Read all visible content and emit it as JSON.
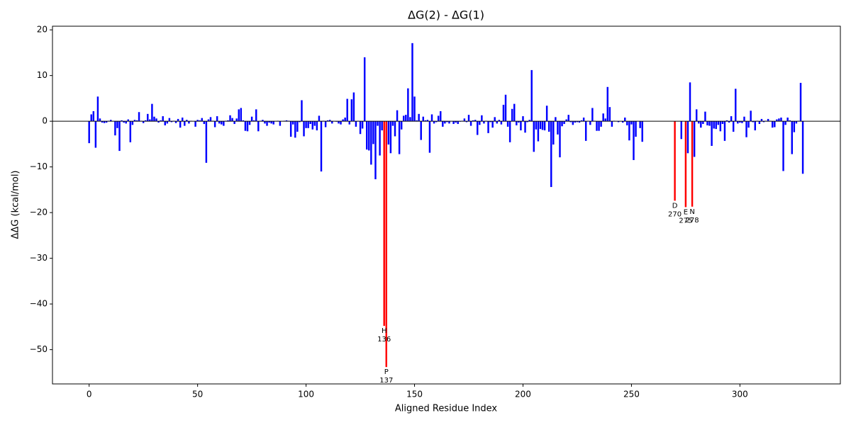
{
  "chart_data": {
    "type": "bar",
    "title": "ΔG(2) - ΔG(1)",
    "xlabel": "Aligned Residue Index",
    "ylabel": "ΔΔG (kcal/mol)",
    "color": "#0000ff",
    "highlight_color": "#ff0000",
    "hline": 0,
    "xlim": [
      -16.9,
      346.3
    ],
    "ylim": [
      -57.5,
      20.8
    ],
    "xticks": [
      0,
      50,
      100,
      150,
      200,
      250,
      300
    ],
    "yticks": [
      {
        "value": -50,
        "label": "−50"
      },
      {
        "value": -40,
        "label": "−40"
      },
      {
        "value": -30,
        "label": "−30"
      },
      {
        "value": -20,
        "label": "−20"
      },
      {
        "value": -10,
        "label": "−10"
      },
      0,
      10,
      20
    ],
    "annotations": [
      {
        "text": "H",
        "x": 136
      },
      {
        "text": "P",
        "x": 137
      },
      {
        "text": "D",
        "x": 270
      },
      {
        "text": "E",
        "x": 275
      },
      {
        "text": "N",
        "x": 278
      }
    ],
    "x": [
      0,
      1,
      2,
      3,
      4,
      5,
      6,
      7,
      8,
      9,
      10,
      11,
      12,
      13,
      14,
      15,
      16,
      17,
      18,
      19,
      20,
      21,
      22,
      23,
      24,
      25,
      26,
      27,
      28,
      29,
      30,
      31,
      32,
      33,
      34,
      35,
      36,
      37,
      38,
      39,
      40,
      41,
      42,
      43,
      44,
      45,
      46,
      47,
      48,
      49,
      50,
      51,
      52,
      53,
      54,
      55,
      56,
      57,
      58,
      59,
      60,
      61,
      62,
      63,
      64,
      65,
      66,
      67,
      68,
      69,
      70,
      71,
      72,
      73,
      74,
      75,
      76,
      77,
      78,
      79,
      80,
      81,
      82,
      83,
      84,
      85,
      86,
      87,
      88,
      89,
      90,
      91,
      92,
      93,
      94,
      95,
      96,
      97,
      98,
      99,
      100,
      101,
      102,
      103,
      104,
      105,
      106,
      107,
      108,
      109,
      110,
      111,
      112,
      113,
      114,
      115,
      116,
      117,
      118,
      119,
      120,
      121,
      122,
      123,
      124,
      125,
      126,
      127,
      128,
      129,
      130,
      131,
      132,
      133,
      134,
      135,
      136,
      137,
      138,
      139,
      140,
      141,
      142,
      143,
      144,
      145,
      146,
      147,
      148,
      149,
      150,
      151,
      152,
      153,
      154,
      155,
      156,
      157,
      158,
      159,
      160,
      161,
      162,
      163,
      164,
      165,
      166,
      167,
      168,
      169,
      170,
      171,
      172,
      173,
      174,
      175,
      176,
      177,
      178,
      179,
      180,
      181,
      182,
      183,
      184,
      185,
      186,
      187,
      188,
      189,
      190,
      191,
      192,
      193,
      194,
      195,
      196,
      197,
      198,
      199,
      200,
      201,
      202,
      203,
      204,
      205,
      206,
      207,
      208,
      209,
      210,
      211,
      212,
      213,
      214,
      215,
      216,
      217,
      218,
      219,
      220,
      221,
      222,
      223,
      224,
      225,
      226,
      227,
      228,
      229,
      230,
      231,
      232,
      233,
      234,
      235,
      236,
      237,
      238,
      239,
      240,
      241,
      242,
      243,
      244,
      245,
      246,
      247,
      248,
      249,
      250,
      251,
      252,
      253,
      254,
      255,
      256,
      257,
      258,
      259,
      260,
      261,
      262,
      263,
      264,
      265,
      266,
      267,
      268,
      269,
      270,
      271,
      272,
      273,
      274,
      275,
      276,
      277,
      278,
      279,
      280,
      281,
      282,
      283,
      284,
      285,
      286,
      287,
      288,
      289,
      290,
      291,
      292,
      293,
      294,
      295,
      296,
      297,
      298,
      299,
      300,
      301,
      302,
      303,
      304,
      305,
      306,
      307,
      308,
      309,
      310,
      311,
      312,
      313,
      314,
      315,
      316,
      317,
      318,
      319,
      320,
      321,
      322,
      323,
      324,
      325,
      326,
      327,
      328,
      329
    ],
    "values": [
      -4.8,
      1.5,
      2.2,
      -5.8,
      5.4,
      0.6,
      -0.3,
      -0.4,
      -0.3,
      0.1,
      0.3,
      0,
      -3.1,
      -1.5,
      -6.5,
      0.2,
      -0.3,
      -0.5,
      0.4,
      -4.6,
      -0.8,
      0.3,
      0.2,
      2.0,
      0.1,
      -0.4,
      0.2,
      1.6,
      0.4,
      3.8,
      1.0,
      0.6,
      -0.3,
      0.2,
      1.1,
      -0.9,
      -0.5,
      0.7,
      -0.2,
      0.1,
      -0.4,
      0.5,
      -1.4,
      0.8,
      -1.0,
      0.3,
      -0.5,
      0.1,
      0,
      -1.2,
      0.3,
      0.2,
      0.7,
      -0.6,
      -9.1,
      0.4,
      0.9,
      0.1,
      -1.3,
      1.1,
      -0.5,
      -0.7,
      -1.0,
      0.1,
      0.2,
      1.3,
      0.7,
      -0.6,
      0.6,
      2.6,
      2.9,
      0.2,
      -2.1,
      -2.2,
      -0.8,
      1.0,
      0.2,
      2.6,
      -2.2,
      0.1,
      0.3,
      -0.5,
      -1.0,
      -0.3,
      -0.5,
      -0.7,
      0,
      0.1,
      -1.0,
      0,
      0.1,
      0.2,
      0.1,
      -3.4,
      -0.7,
      -3.6,
      -2.3,
      -0.2,
      4.6,
      -3.3,
      -1.5,
      -1.5,
      -0.6,
      -1.8,
      -1.0,
      -2.0,
      1.2,
      -11.0,
      0.1,
      -1.3,
      0.2,
      0.3,
      -0.5,
      0,
      -0.1,
      -0.5,
      -0.7,
      0.4,
      0.8,
      4.9,
      -0.7,
      4.8,
      6.3,
      -1.2,
      0.1,
      -2.8,
      -1.6,
      14.0,
      -6.2,
      -6.4,
      -9.5,
      -5.0,
      -12.7,
      -1.0,
      -7.5,
      -2.0,
      -44.8,
      -53.8,
      -5.1,
      -7.0,
      -1.0,
      -3.3,
      2.4,
      -7.2,
      -1.8,
      1.2,
      1.4,
      7.2,
      0.9,
      17.1,
      5.4,
      0.2,
      1.6,
      -4.1,
      1.0,
      0.2,
      0.3,
      -6.9,
      1.5,
      -0.5,
      -0.2,
      1.2,
      2.2,
      -1.2,
      -0.5,
      -0.2,
      -0.5,
      0,
      -0.6,
      -0.3,
      -0.6,
      -0.1,
      0.1,
      0.6,
      -0.2,
      1.4,
      -1.0,
      0.2,
      0.3,
      -3.0,
      -0.8,
      1.3,
      -0.5,
      0.1,
      -2.6,
      -0.2,
      -1.4,
      0.9,
      -0.5,
      0.3,
      -0.7,
      3.6,
      5.8,
      -1.2,
      -4.6,
      2.7,
      3.8,
      -0.9,
      -0.3,
      -2.0,
      1.1,
      -2.5,
      -0.2,
      0.3,
      11.2,
      -6.7,
      -1.8,
      -4.4,
      -1.7,
      -1.9,
      -2.0,
      3.4,
      -2.3,
      -14.4,
      -5.1,
      0.9,
      -2.9,
      -7.9,
      -1.1,
      -0.6,
      0.4,
      1.4,
      -0.2,
      -0.8,
      -0.3,
      -0.2,
      -0.3,
      0.2,
      0.8,
      -4.3,
      0.1,
      -0.8,
      2.9,
      0.1,
      -2.1,
      -2.1,
      -1.2,
      1.7,
      0.6,
      7.5,
      3.1,
      -1.2,
      0.1,
      0,
      -0.2,
      0,
      -0.3,
      0.8,
      -0.9,
      -4.2,
      -0.7,
      -8.5,
      -3.4,
      0,
      -1.5,
      -4.5,
      0,
      0,
      0,
      0,
      0,
      0,
      0,
      0,
      0,
      0,
      0,
      0,
      0,
      0,
      -17.4,
      0,
      0,
      -3.9,
      0,
      -18.8,
      -7.0,
      8.5,
      -18.7,
      -7.8,
      2.6,
      -0.5,
      -1.4,
      -0.6,
      2.1,
      -0.9,
      -1.0,
      -5.4,
      -1.6,
      -1.7,
      -0.8,
      -2.2,
      -0.6,
      -4.3,
      0.2,
      -0.3,
      1.1,
      -2.3,
      7.1,
      -0.5,
      -0.3,
      -0.4,
      1.0,
      -3.5,
      -1.4,
      2.3,
      -0.2,
      -2.0,
      0.1,
      -0.6,
      0.5,
      -0.2,
      0.1,
      0.5,
      0.1,
      -1.4,
      -1.3,
      0.4,
      0.6,
      0.8,
      -10.9,
      -0.8,
      0.8,
      0.2,
      -7.2,
      -2.4,
      -0.5,
      0.1,
      8.4,
      -11.5
    ]
  }
}
